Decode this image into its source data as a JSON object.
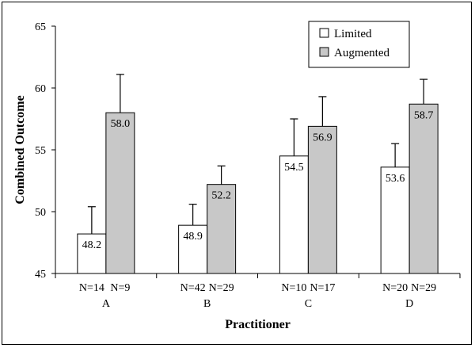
{
  "chart_data": {
    "type": "bar",
    "title": "",
    "xlabel": "Practitioner",
    "ylabel": "Combined Outcome",
    "ylim": [
      45,
      65
    ],
    "yticks": [
      "45",
      "50",
      "55",
      "60",
      "65"
    ],
    "categories": [
      "A",
      "B",
      "C",
      "D"
    ],
    "series": [
      {
        "name": "Limited",
        "color": "#ffffff",
        "values": [
          48.2,
          48.9,
          54.5,
          53.6
        ],
        "labels": [
          "48.2",
          "48.9",
          "54.5",
          "53.6"
        ],
        "error_upper": [
          50.4,
          50.6,
          57.5,
          55.5
        ],
        "counts": [
          "N=14",
          "N=42",
          "N=10",
          "N=20"
        ]
      },
      {
        "name": "Augmented",
        "color": "#c8c8c8",
        "values": [
          58.0,
          52.2,
          56.9,
          58.7
        ],
        "labels": [
          "58.0",
          "52.2",
          "56.9",
          "58.7"
        ],
        "error_upper": [
          61.1,
          53.7,
          59.3,
          60.7
        ],
        "counts": [
          "N=9",
          "N=29",
          "N=17",
          "N=29"
        ]
      }
    ],
    "legend_position": "top-right",
    "grid": false
  }
}
